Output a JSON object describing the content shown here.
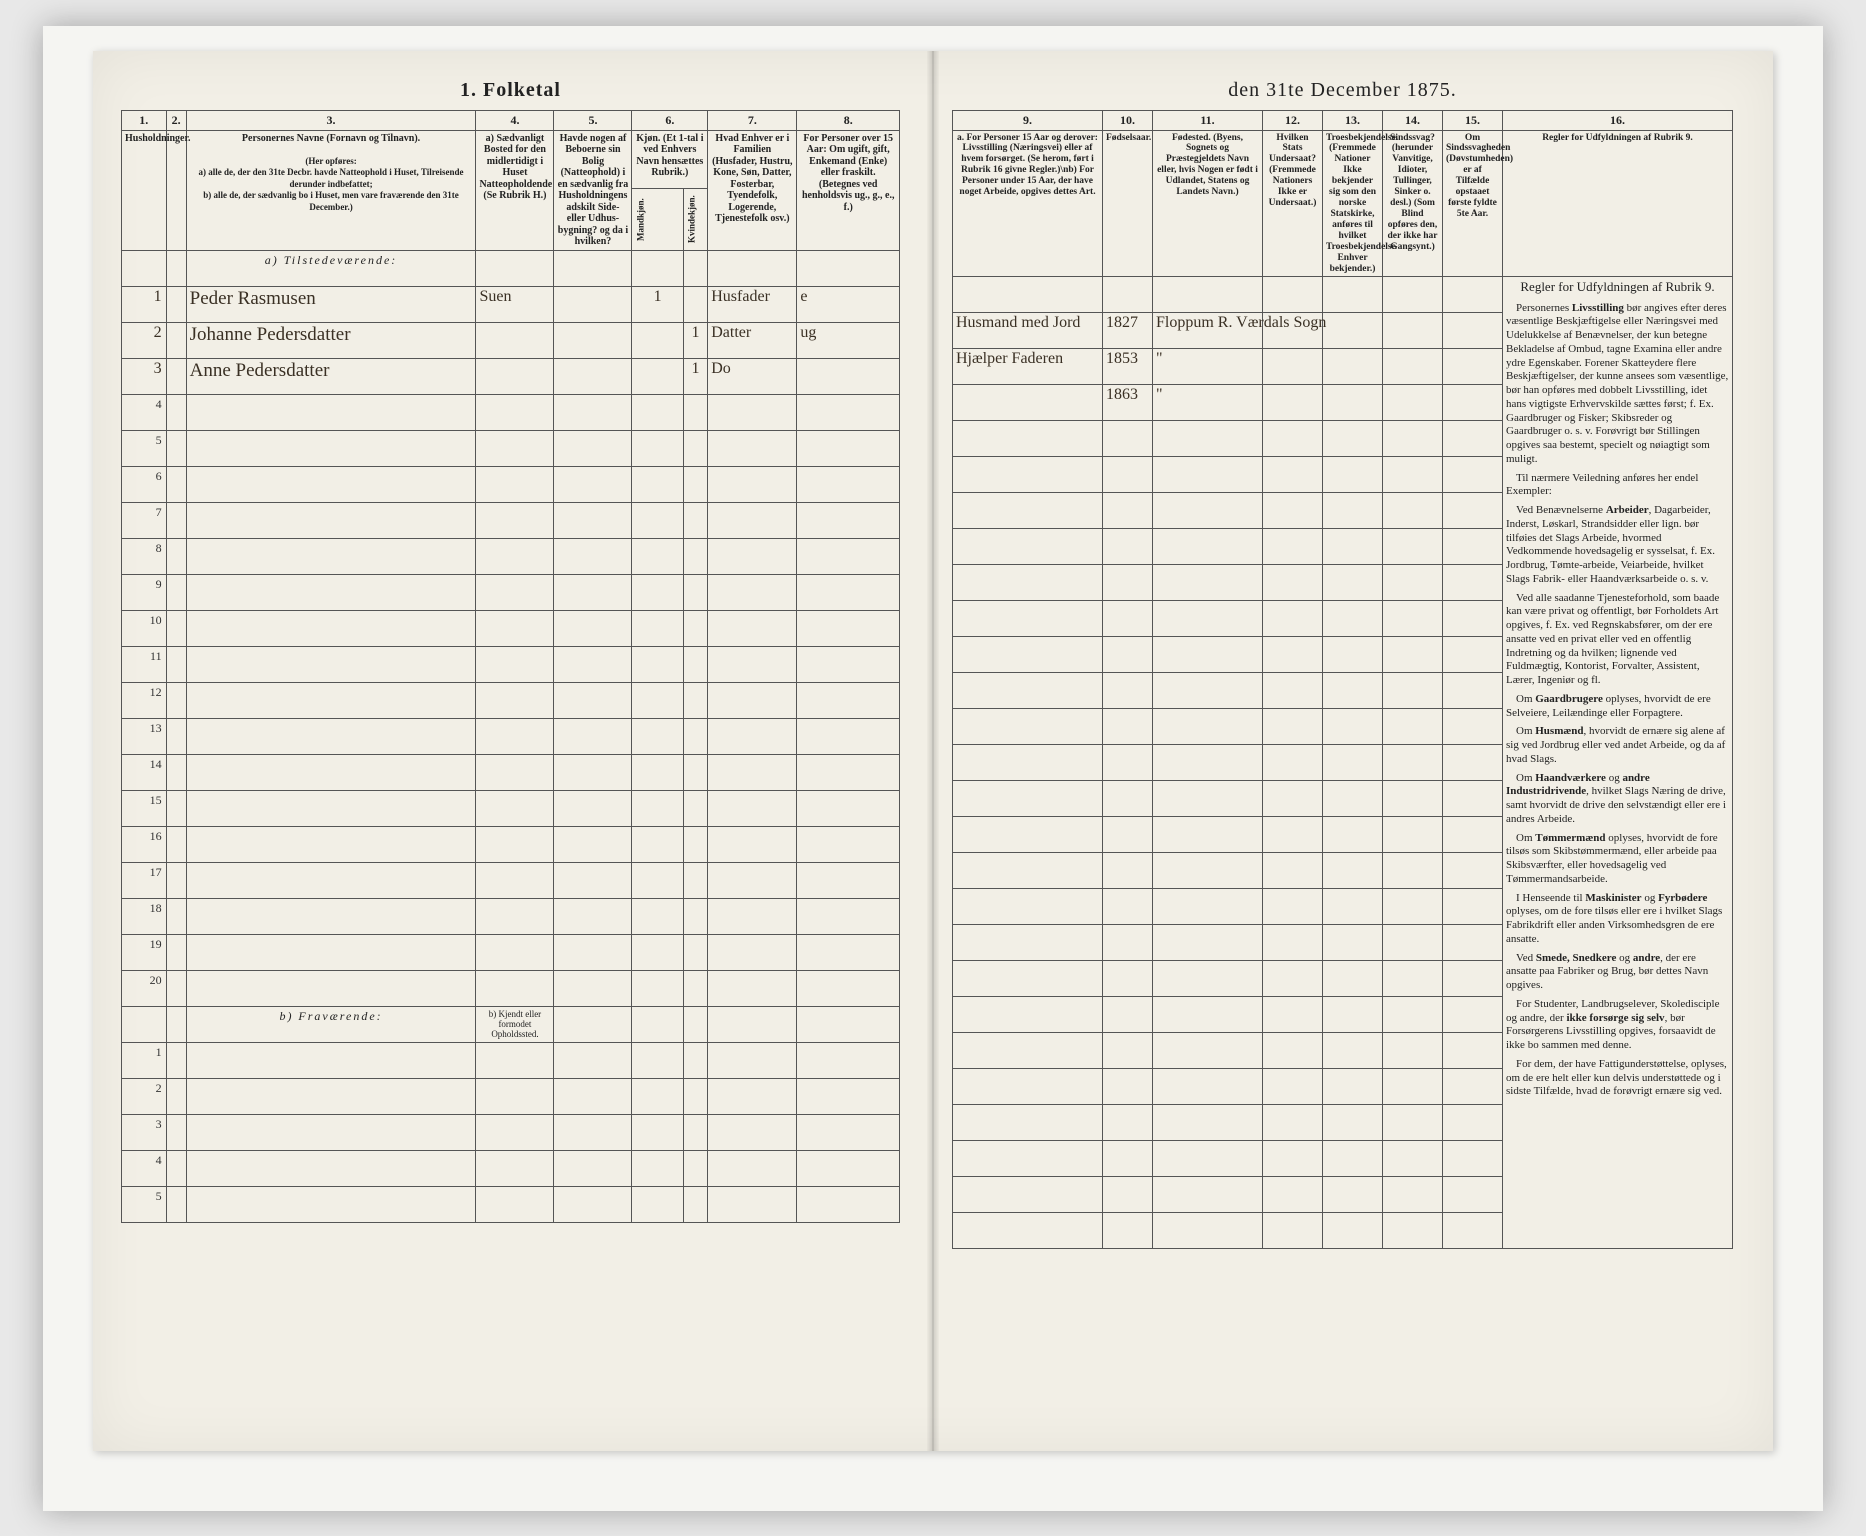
{
  "title_left": "1. Folketal",
  "title_right": "den 31te December 1875.",
  "left_columns": {
    "1": "Husholdninger.",
    "2": "",
    "3": "Personernes Navne (Fornavn og Tilnavn).",
    "4": "a) Sædvanligt Bosted for den midlertidigt i Huset Natteopholdende (Se Rubrik H.)",
    "5": "Havde nogen af Beboerne sin Bolig (Natteophold) i en sædvanlig fra Husholdningens adskilt Side- eller Udhus-bygning? og da i hvilken?",
    "6": "Kjøn. (Et 1-tal i ved Enhvers Navn hensættes Rubrik.)",
    "7": "Hvad Enhver er i Familien (Husfader, Hustru, Kone, Søn, Datter, Fosterbar, Tyendefolk, Logerende, Tjenestefolk osv.)",
    "8": "For Personer over 15 Aar: Om ugift, gift, Enkemand (Enke) eller fraskilt. (Betegnes ved henholdsvis ug., g., e., f.)"
  },
  "right_columns": {
    "9": "a. For Personer 15 Aar og derover: Livsstilling (Næringsvei) eller af hvem forsørget. (Se herom, ført i Rubrik 16 givne Regler.)\\nb) For Personer under 15 Aar, der have noget Arbeide, opgives dettes Art.",
    "10": "Fødselsaar.",
    "11": "Fødested. (Byens, Sognets og Præstegjeldets Navn eller, hvis Nogen er født i Udlandet, Statens og Landets Navn.)",
    "12": "Hvilken Stats Undersaat? (Fremmede Nationers Ikke er Undersaat.)",
    "13": "Troesbekjendelse. (Fremmede Nationer Ikke bekjender sig som den norske Statskirke, anføres til hvilket Troesbekjendelse Enhver bekjender.)",
    "14": "Sindssvag? (herunder Vanvitige, Idioter, Tullinger, Sinker o. desl.) (Som Blind opføres den, der ikke har Gangsynt.)",
    "15": "Om Sindssvagheden (Døvstumheden) er af Tilfælde opstaaet første fyldte 5te Aar.",
    "16": "Regler for Udfyldningen af Rubrik 9."
  },
  "col6_sub": {
    "m": "Mandkjøn.",
    "k": "Kvindekjøn."
  },
  "section_a": "a) Tilstedeværende:",
  "section_b": "b) Fraværende:",
  "section_b_note": "b) Kjendt eller formodet Opholdssted.",
  "persons": [
    {
      "hh": "1",
      "name": "Peder Rasmusen",
      "col4": "Suen",
      "m": "1",
      "k": "",
      "rel": "Husfader",
      "civ": "e",
      "occ": "Husmand med Jord",
      "year": "1827",
      "place": "Floppum R. Værdals Sogn"
    },
    {
      "hh": "2",
      "name": "Johanne Pedersdatter",
      "col4": "",
      "m": "",
      "k": "1",
      "rel": "Datter",
      "civ": "ug",
      "occ": "Hjælper Faderen",
      "year": "1853",
      "place": "\""
    },
    {
      "hh": "3",
      "name": "Anne Pedersdatter",
      "col4": "",
      "m": "",
      "k": "1",
      "rel": "Do",
      "civ": "",
      "occ": "",
      "year": "1863",
      "place": "\""
    }
  ],
  "rules_title": "Regler for Udfyldningen af Rubrik 9.",
  "rules": [
    "Personernes <b>Livsstilling</b> bør angives efter deres væsentlige Beskjæftigelse eller Næringsvei med Udelukkelse af Benævnelser, der kun betegne Bekladelse af Ombud, tagne Examina eller andre ydre Egenskaber. Forener Skatteydere flere Beskjæftigelser, der kunne ansees som væsentlige, bør han opføres med dobbelt Livsstilling, idet hans vigtigste Erhvervskilde sættes først; f. Ex. Gaardbruger og Fisker; Skibsreder og Gaardbruger o. s. v. Forøvrigt bør Stillingen opgives saa bestemt, specielt og nøiagtigt som muligt.",
    "Til nærmere Veiledning anføres her endel Exempler:",
    "Ved Benævnelserne <b>Arbeider</b>, Dagarbeider, Inderst, Løskarl, Strandsidder eller lign. bør tilføies det Slags Arbeide, hvormed Vedkommende hovedsagelig er sysselsat, f. Ex. Jordbrug, Tømte-arbeide, Veiarbeide, hvilket Slags Fabrik- eller Haandværksarbeide o. s. v.",
    "Ved alle saadanne Tjenesteforhold, som baade kan være privat og offentligt, bør Forholdets Art opgives, f. Ex. ved Regnskabsfører, om der ere ansatte ved en privat eller ved en offentlig Indretning og da hvilken; lignende ved Fuldmægtig, Kontorist, Forvalter, Assistent, Lærer, Ingeniør og fl.",
    "Om <b>Gaardbrugere</b> oplyses, hvorvidt de ere Selveiere, Leilændinge eller Forpagtere.",
    "Om <b>Husmænd</b>, hvorvidt de ernære sig alene af sig ved Jordbrug eller ved andet Arbeide, og da af hvad Slags.",
    "Om <b>Haandværkere</b> og <b>andre Industridrivende</b>, hvilket Slags Næring de drive, samt hvorvidt de drive den selvstændigt eller ere i andres Arbeide.",
    "Om <b>Tømmermænd</b> oplyses, hvorvidt de fore tilsøs som Skibstømmermænd, eller arbeide paa Skibsværfter, eller hovedsagelig ved Tømmermandsarbeide.",
    "I Henseende til <b>Maskinister</b> og <b>Fyrbødere</b> oplyses, om de fore tilsøs eller ere i hvilket Slags Fabrikdrift eller anden Virksomhedsgren de ere ansatte.",
    "Ved <b>Smede, Snedkere</b> og <b>andre</b>, der ere ansatte paa Fabriker og Brug, bør dettes Navn opgives.",
    "For Studenter, Landbrugselever, Skoledisciple og andre, der <b>ikke forsørge sig selv</b>, bør Forsørgerens Livsstilling opgives, forsaavidt de ikke bo sammen med denne.",
    "For dem, der have Fattigunderstøttelse, oplyses, om de ere helt eller kun delvis understøttede og i sidste Tilfælde, hvad de forøvrigt ernære sig ved."
  ]
}
